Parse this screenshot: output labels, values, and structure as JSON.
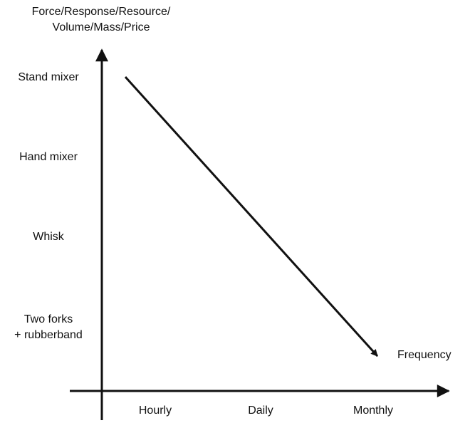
{
  "axes": {
    "y_title_line1": "Force/Response/Resource/",
    "y_title_line2": "Volume/Mass/Price",
    "x_title": "Frequency"
  },
  "y_levels": [
    "Stand mixer",
    "Hand mixer",
    "Whisk",
    "Two forks\n+ rubberband"
  ],
  "x_levels": [
    "Hourly",
    "Daily",
    "Monthly"
  ],
  "trend": {
    "from": {
      "y_level": "Stand mixer",
      "x_level": "Hourly"
    },
    "to": {
      "y_level": "Two forks\n+ rubberband",
      "x_level": "Monthly"
    }
  },
  "colors": {
    "ink": "#111111",
    "background": "#ffffff"
  }
}
